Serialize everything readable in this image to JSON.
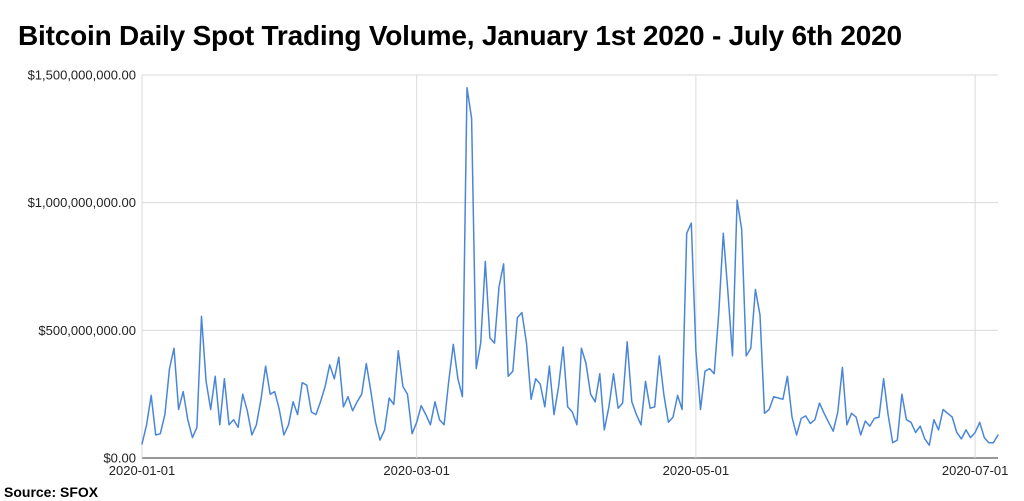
{
  "title": "Bitcoin Daily Spot Trading Volume, January 1st 2020 - July 6th 2020",
  "source": "Source: SFOX",
  "chart_data": {
    "type": "line",
    "title": "Bitcoin Daily Spot Trading Volume, January 1st 2020 - July 6th 2020",
    "xlabel": "",
    "ylabel": "",
    "ylim": [
      0,
      1500000000
    ],
    "grid": true,
    "legend": "none",
    "line_color": "#4a86d8",
    "yticks": [
      0,
      500000000,
      1000000000,
      1500000000
    ],
    "ytick_labels": [
      "$0.00",
      "$500,000,000.00",
      "$1,000,000,000.00",
      "$1,500,000,000.00"
    ],
    "xticks": [
      "2020-01-01",
      "2020-03-01",
      "2020-05-01",
      "2020-07-01"
    ],
    "x_start": "2020-01-01",
    "x_end": "2020-07-06",
    "series": [
      {
        "values": [
          55000000,
          130000000,
          245000000,
          90000000,
          95000000,
          170000000,
          350000000,
          430000000,
          190000000,
          260000000,
          150000000,
          80000000,
          120000000,
          555000000,
          300000000,
          190000000,
          320000000,
          130000000,
          310000000,
          130000000,
          150000000,
          120000000,
          250000000,
          185000000,
          90000000,
          130000000,
          230000000,
          360000000,
          250000000,
          260000000,
          190000000,
          90000000,
          130000000,
          220000000,
          170000000,
          295000000,
          285000000,
          180000000,
          170000000,
          220000000,
          280000000,
          365000000,
          310000000,
          395000000,
          200000000,
          240000000,
          185000000,
          220000000,
          250000000,
          370000000,
          260000000,
          140000000,
          70000000,
          110000000,
          235000000,
          210000000,
          420000000,
          280000000,
          250000000,
          95000000,
          140000000,
          205000000,
          170000000,
          130000000,
          220000000,
          150000000,
          130000000,
          300000000,
          445000000,
          310000000,
          240000000,
          1450000000,
          1330000000,
          350000000,
          450000000,
          770000000,
          470000000,
          450000000,
          670000000,
          760000000,
          320000000,
          340000000,
          550000000,
          570000000,
          450000000,
          230000000,
          310000000,
          290000000,
          200000000,
          360000000,
          170000000,
          280000000,
          435000000,
          200000000,
          180000000,
          130000000,
          430000000,
          370000000,
          250000000,
          220000000,
          330000000,
          110000000,
          200000000,
          330000000,
          195000000,
          215000000,
          455000000,
          220000000,
          170000000,
          130000000,
          300000000,
          195000000,
          200000000,
          400000000,
          250000000,
          140000000,
          160000000,
          245000000,
          190000000,
          880000000,
          920000000,
          420000000,
          190000000,
          340000000,
          350000000,
          330000000,
          570000000,
          880000000,
          650000000,
          400000000,
          1010000000,
          895000000,
          400000000,
          430000000,
          660000000,
          560000000,
          175000000,
          190000000,
          240000000,
          235000000,
          230000000,
          320000000,
          160000000,
          90000000,
          155000000,
          165000000,
          135000000,
          150000000,
          215000000,
          175000000,
          140000000,
          105000000,
          180000000,
          355000000,
          130000000,
          175000000,
          160000000,
          90000000,
          145000000,
          125000000,
          155000000,
          160000000,
          310000000,
          170000000,
          60000000,
          70000000,
          250000000,
          150000000,
          140000000,
          100000000,
          125000000,
          75000000,
          50000000,
          150000000,
          110000000,
          190000000,
          175000000,
          160000000,
          100000000,
          75000000,
          110000000,
          80000000,
          100000000,
          140000000,
          80000000,
          60000000,
          60000000,
          90000000
        ]
      }
    ]
  }
}
